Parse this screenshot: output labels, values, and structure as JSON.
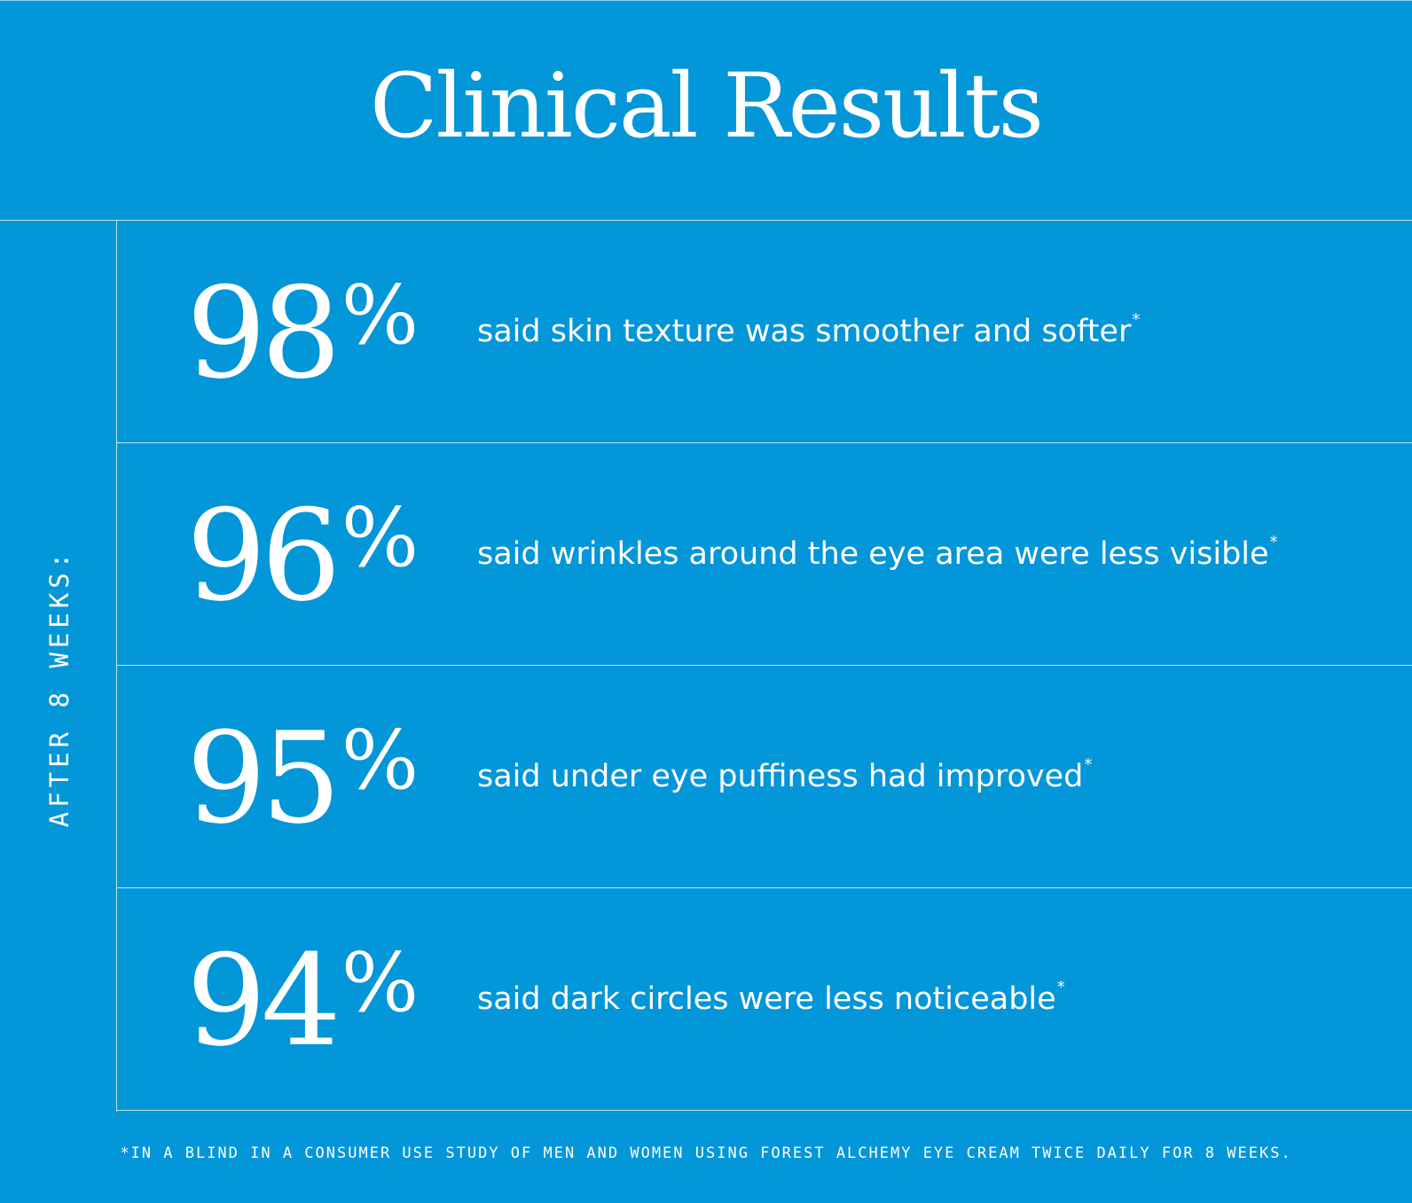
{
  "title": "Clinical Results",
  "side_label": "AFTER 8 WEEKS:",
  "results": [
    {
      "value": "98",
      "unit": "%",
      "text": "said skin texture was smoother and softer",
      "mark": "*"
    },
    {
      "value": "96",
      "unit": "%",
      "text": "said wrinkles around the eye area were less visible",
      "mark": "*"
    },
    {
      "value": "95",
      "unit": "%",
      "text": "said under eye puffiness had improved",
      "mark": "*"
    },
    {
      "value": "94",
      "unit": "%",
      "text": "said dark circles were less noticeable",
      "mark": "*"
    }
  ],
  "footnote": "*IN A BLIND IN A CONSUMER USE STUDY OF MEN AND WOMEN USING FOREST ALCHEMY EYE CREAM TWICE DAILY FOR 8 WEEKS.",
  "colors": {
    "background": "#0396d8",
    "text": "#ffffff"
  }
}
